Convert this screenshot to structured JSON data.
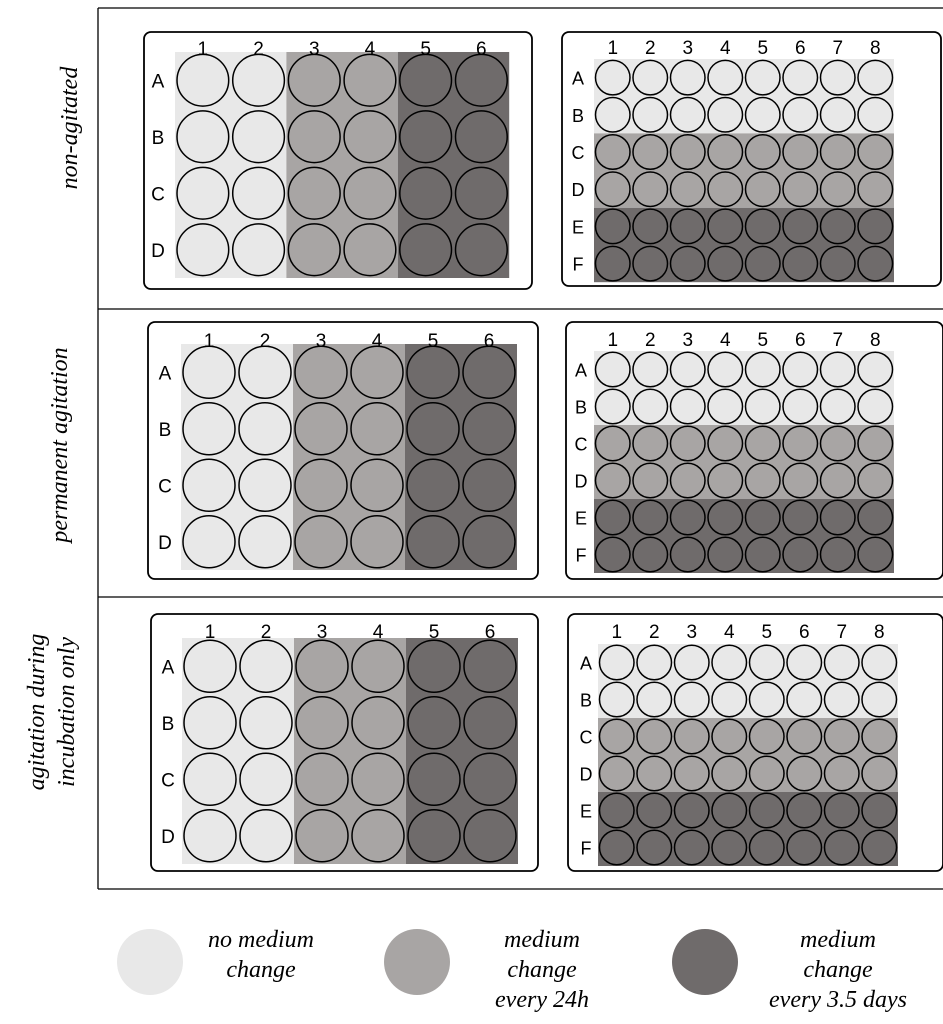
{
  "conditions": [
    {
      "id": "non-agitated",
      "lines": [
        "non-agitated"
      ]
    },
    {
      "id": "permanent-agitation",
      "lines": [
        "permanent agitation"
      ]
    },
    {
      "id": "agitation-incubation",
      "lines": [
        "agitation during",
        "incubation only"
      ]
    }
  ],
  "plates": {
    "six_well": {
      "columns": [
        "1",
        "2",
        "3",
        "4",
        "5",
        "6"
      ],
      "rows": [
        "A",
        "B",
        "C",
        "D"
      ],
      "column_treatment": [
        "none",
        "none",
        "24h",
        "24h",
        "3.5d",
        "3.5d"
      ]
    },
    "forty_eight_well": {
      "columns": [
        "1",
        "2",
        "3",
        "4",
        "5",
        "6",
        "7",
        "8"
      ],
      "rows": [
        "A",
        "B",
        "C",
        "D",
        "E",
        "F"
      ],
      "row_treatment": [
        "none",
        "none",
        "24h",
        "24h",
        "3.5d",
        "3.5d"
      ]
    }
  },
  "treatments": {
    "none": {
      "lines": [
        "no medium",
        "change"
      ],
      "color": "#e8e8e8"
    },
    "24h": {
      "lines": [
        "medium",
        "change",
        "every 24h"
      ],
      "color": "#a8a5a4"
    },
    "3.5d": {
      "lines": [
        "medium",
        "change",
        "every 3.5 days"
      ],
      "color": "#6f6b6b"
    }
  },
  "legend_order": [
    "none",
    "24h",
    "3.5d"
  ]
}
